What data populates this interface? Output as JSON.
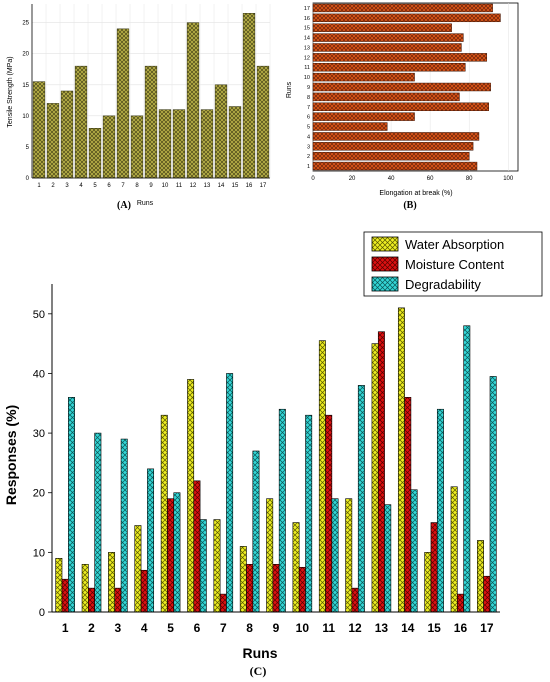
{
  "panels": {
    "a": "(A)",
    "b": "(B)",
    "c": "(C)"
  },
  "colors": {
    "tensile": "#b5ad45",
    "elongation": "#d9541a",
    "water": "#eeee22",
    "moisture": "#dd1111",
    "degrad": "#33d6d6"
  },
  "chart_data": [
    {
      "type": "bar",
      "panel": "A",
      "ylabel": "Tensile Strength (MPa)",
      "xlabel": "Runs",
      "categories": [
        "1",
        "2",
        "3",
        "4",
        "5",
        "6",
        "7",
        "8",
        "9",
        "10",
        "11",
        "12",
        "13",
        "14",
        "15",
        "16",
        "17"
      ],
      "values": [
        15.5,
        12,
        14,
        18,
        8,
        10,
        24,
        10,
        18,
        11,
        11,
        25,
        11,
        15,
        11.5,
        26.5,
        18
      ],
      "ylim": [
        0,
        28
      ],
      "yticks": [
        "0",
        "5",
        "10",
        "15",
        "20",
        "25"
      ],
      "grid": true
    },
    {
      "type": "bar",
      "orientation": "horizontal",
      "panel": "B",
      "xlabel": "Elongation at break (%)",
      "ylabel": "Runs",
      "categories": [
        "1",
        "2",
        "3",
        "4",
        "5",
        "6",
        "7",
        "8",
        "9",
        "10",
        "11",
        "12",
        "13",
        "14",
        "15",
        "16",
        "17"
      ],
      "values": [
        84,
        80,
        82,
        85,
        38,
        52,
        90,
        75,
        91,
        52,
        78,
        89,
        76,
        77,
        71,
        96,
        92
      ],
      "xlim": [
        0,
        105
      ],
      "xticks": [
        "0",
        "20",
        "40",
        "60",
        "80",
        "100"
      ],
      "grid": true
    },
    {
      "type": "bar",
      "panel": "C",
      "ylabel": "Responses (%)",
      "xlabel": "Runs",
      "categories": [
        "1",
        "2",
        "3",
        "4",
        "5",
        "6",
        "7",
        "8",
        "9",
        "10",
        "11",
        "12",
        "13",
        "14",
        "15",
        "16",
        "17"
      ],
      "series": [
        {
          "name": "Water Absorption",
          "values": [
            9,
            8,
            10,
            14.5,
            33,
            39,
            15.5,
            11,
            19,
            15,
            45.5,
            19,
            45,
            51,
            10,
            21,
            12
          ]
        },
        {
          "name": "Moisture Content",
          "values": [
            5.5,
            4,
            4,
            7,
            19,
            22,
            3,
            8,
            8,
            7.5,
            33,
            4,
            47,
            36,
            15,
            3,
            6
          ]
        },
        {
          "name": "Degradability",
          "values": [
            36,
            30,
            29,
            24,
            20,
            15.5,
            40,
            27,
            34,
            33,
            19,
            38,
            18,
            20.5,
            34,
            48,
            39.5
          ]
        }
      ],
      "ylim": [
        0,
        55
      ],
      "yticks": [
        "0",
        "10",
        "20",
        "30",
        "40",
        "50"
      ],
      "legend": "top-right"
    }
  ]
}
